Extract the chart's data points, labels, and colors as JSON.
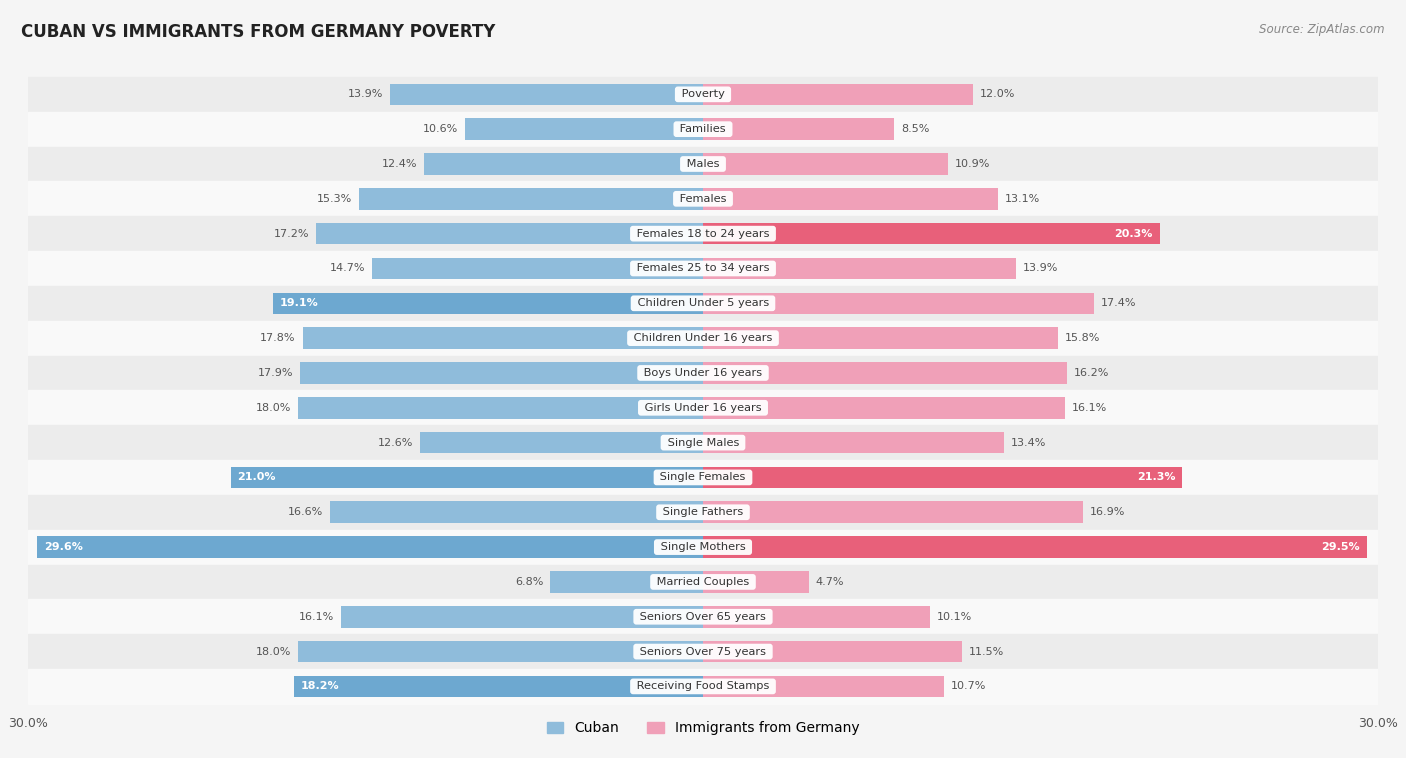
{
  "title": "CUBAN VS IMMIGRANTS FROM GERMANY POVERTY",
  "source": "Source: ZipAtlas.com",
  "categories": [
    "Poverty",
    "Families",
    "Males",
    "Females",
    "Females 18 to 24 years",
    "Females 25 to 34 years",
    "Children Under 5 years",
    "Children Under 16 years",
    "Boys Under 16 years",
    "Girls Under 16 years",
    "Single Males",
    "Single Females",
    "Single Fathers",
    "Single Mothers",
    "Married Couples",
    "Seniors Over 65 years",
    "Seniors Over 75 years",
    "Receiving Food Stamps"
  ],
  "cuban": [
    13.9,
    10.6,
    12.4,
    15.3,
    17.2,
    14.7,
    19.1,
    17.8,
    17.9,
    18.0,
    12.6,
    21.0,
    16.6,
    29.6,
    6.8,
    16.1,
    18.0,
    18.2
  ],
  "germany": [
    12.0,
    8.5,
    10.9,
    13.1,
    20.3,
    13.9,
    17.4,
    15.8,
    16.2,
    16.1,
    13.4,
    21.3,
    16.9,
    29.5,
    4.7,
    10.1,
    11.5,
    10.7
  ],
  "cuban_color": "#8fbcdb",
  "germany_color": "#f0a0b8",
  "cuban_highlight_color": "#6da8d0",
  "germany_highlight_color": "#e8607a",
  "background_color": "#f5f5f5",
  "row_even_color": "#ececec",
  "row_odd_color": "#f9f9f9",
  "max_value": 30.0,
  "legend_cuban": "Cuban",
  "legend_germany": "Immigrants from Germany",
  "cuban_highlight_indices": [
    6,
    11,
    13,
    17
  ],
  "germany_highlight_indices": [
    4,
    11,
    13
  ]
}
